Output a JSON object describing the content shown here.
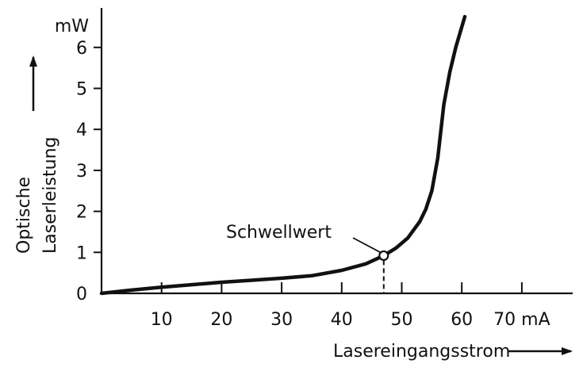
{
  "chart_data": {
    "type": "line",
    "title": "",
    "xlabel": "Lasereingangsstrom",
    "ylabel_lines": [
      "Optische",
      "Laserleistung"
    ],
    "x_unit": "mA",
    "y_unit": "mW",
    "xlim": [
      0,
      80
    ],
    "ylim": [
      0,
      7
    ],
    "xticks": [
      10,
      20,
      30,
      40,
      50,
      60,
      70
    ],
    "yticks": [
      0,
      1,
      2,
      3,
      4,
      5,
      6
    ],
    "grid": false,
    "series": [
      {
        "x": [
          0,
          5,
          10,
          15,
          20,
          25,
          30,
          35,
          40,
          44,
          47,
          49,
          51,
          53,
          54,
          55,
          56,
          57,
          58,
          59,
          60.5
        ],
        "y": [
          0,
          0.08,
          0.15,
          0.21,
          0.27,
          0.32,
          0.37,
          0.43,
          0.56,
          0.72,
          0.92,
          1.1,
          1.35,
          1.75,
          2.05,
          2.5,
          3.3,
          4.6,
          5.4,
          6.0,
          6.75
        ]
      }
    ],
    "annotations": [
      {
        "text": "Schwellwert",
        "x": 47,
        "y": 0.92
      }
    ],
    "color": "#111111"
  }
}
